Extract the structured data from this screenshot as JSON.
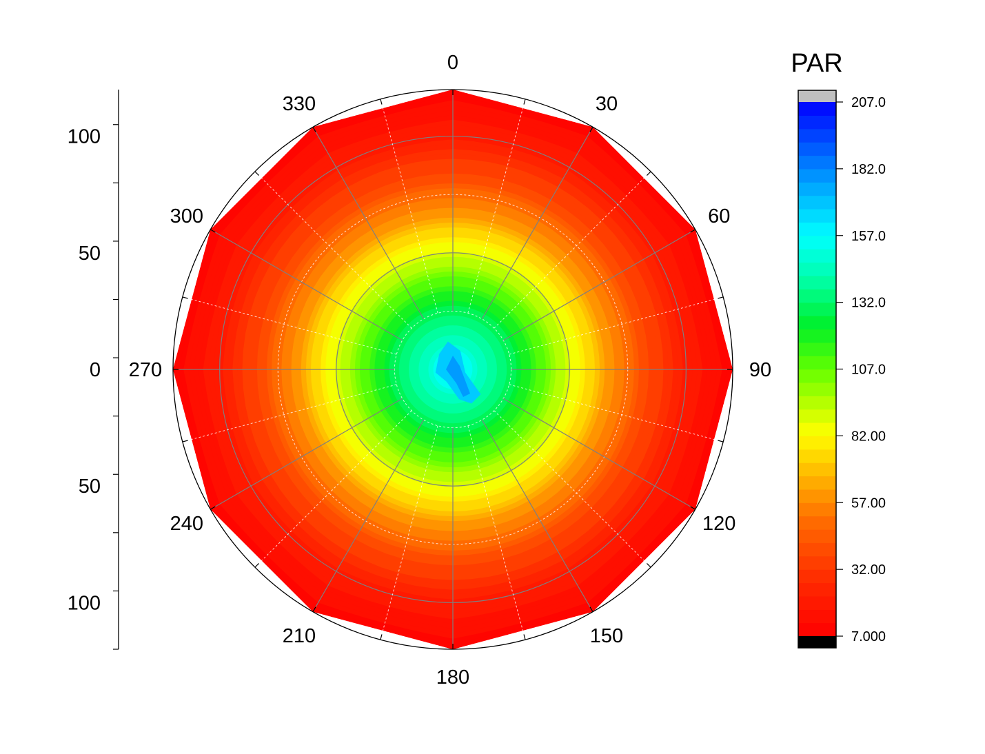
{
  "chart_data": {
    "type": "heatmap",
    "subtype": "polar-contour",
    "colorbar_title": "PAR",
    "angle_ticks": [
      0,
      30,
      60,
      90,
      120,
      150,
      180,
      210,
      240,
      270,
      300,
      330
    ],
    "angle_tick_labels": [
      "0",
      "30",
      "60",
      "90",
      "120",
      "150",
      "180",
      "210",
      "240",
      "270",
      "300",
      "330"
    ],
    "angle_direction": "clockwise",
    "angle_zero_location": "top",
    "radial_range": [
      0,
      120
    ],
    "radial_ticks_upper": [
      100,
      50,
      0
    ],
    "radial_ticks_lower": [
      50,
      100
    ],
    "radial_tick_labels_upper": [
      "100",
      "50",
      "0"
    ],
    "radial_tick_labels_lower": [
      "50",
      "100"
    ],
    "colorbar_range": [
      7.0,
      207.0
    ],
    "colorbar_ticks": [
      7.0,
      32.0,
      57.0,
      82.0,
      107.0,
      132.0,
      157.0,
      182.0,
      207.0
    ],
    "colorbar_tick_labels": [
      "7.000",
      "32.00",
      "57.00",
      "82.00",
      "107.0",
      "132.0",
      "157.0",
      "182.0",
      "207.0"
    ],
    "colorbar_levels": 40,
    "colormap": "rainbow (red-yellow-green-cyan-blue)",
    "above_max_color": "#c0c0c0",
    "below_min_color": "#000000",
    "approx_radial_profile": [
      {
        "r": 0,
        "value": 165
      },
      {
        "r": 10,
        "value": 150
      },
      {
        "r": 25,
        "value": 132
      },
      {
        "r": 40,
        "value": 107
      },
      {
        "r": 55,
        "value": 82
      },
      {
        "r": 70,
        "value": 57
      },
      {
        "r": 85,
        "value": 38
      },
      {
        "r": 100,
        "value": 22
      },
      {
        "r": 120,
        "value": 10
      }
    ],
    "grid": true
  }
}
